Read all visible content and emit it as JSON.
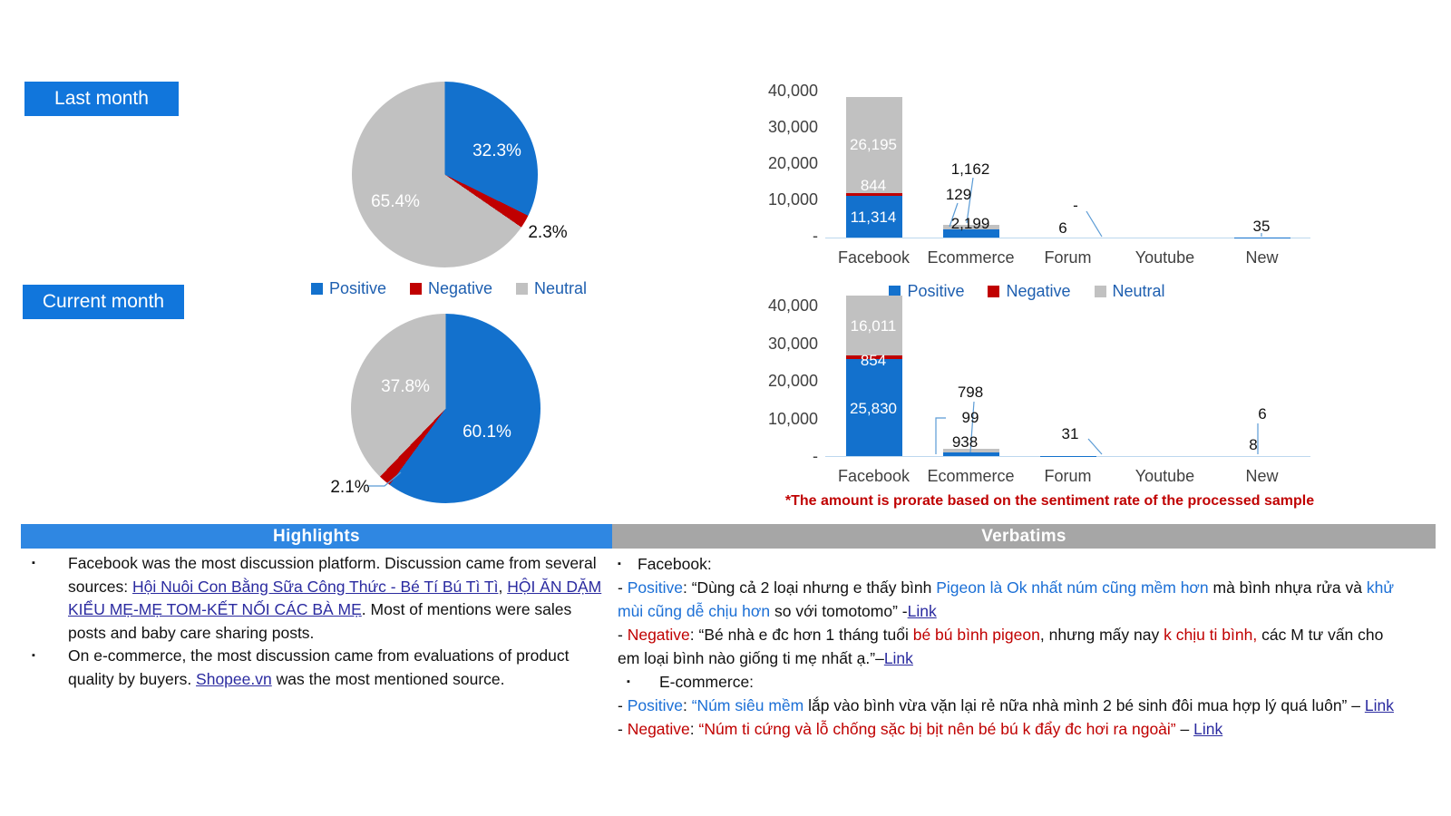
{
  "period_labels": {
    "last_month": "Last month",
    "current_month": "Current month"
  },
  "colors": {
    "positive_blue": "#1371CD",
    "negative_red": "#C00000",
    "neutral_gray": "#C1C1C1",
    "button_blue": "#1176DC",
    "highlights_header_blue": "#2F87E2",
    "verbatims_header_gray": "#A6A6A6",
    "legend_text_blue": "#1E5FB0",
    "inline_blue": "#1B6FD6",
    "link_navy": "#2B2BA0",
    "footnote_red": "#C00000",
    "axis_line_blue": "#BDD7EE",
    "leader_line_blue": "#5B9BD5"
  },
  "sentiment_legend": [
    {
      "label": "Positive",
      "color": "#1371CD"
    },
    {
      "label": "Negative",
      "color": "#C00000"
    },
    {
      "label": "Neutral",
      "color": "#C1C1C1"
    }
  ],
  "chart_data": [
    {
      "id": "pie-last-month",
      "type": "pie",
      "labels": [
        "Positive",
        "Negative",
        "Neutral"
      ],
      "values_pct": [
        32.3,
        2.3,
        65.4
      ],
      "display_labels": [
        "32.3%",
        "2.3%",
        "65.4%"
      ],
      "colors": [
        "#1371CD",
        "#C00000",
        "#C1C1C1"
      ],
      "legend_position": "bottom"
    },
    {
      "id": "pie-current-month",
      "type": "pie",
      "labels": [
        "Positive",
        "Negative",
        "Neutral"
      ],
      "values_pct": [
        60.1,
        2.1,
        37.8
      ],
      "display_labels": [
        "60.1%",
        "2.1%",
        "37.8%"
      ],
      "colors": [
        "#1371CD",
        "#C00000",
        "#C1C1C1"
      ],
      "legend_position": "top-right-of-slide"
    },
    {
      "id": "bar-last-month",
      "type": "bar",
      "stacked": true,
      "categories": [
        "Facebook",
        "Ecommerce",
        "Forum",
        "Youtube",
        "New"
      ],
      "series": [
        {
          "name": "Positive",
          "color": "#1371CD",
          "values": [
            11314,
            2199,
            6,
            0,
            35
          ]
        },
        {
          "name": "Negative",
          "color": "#C00000",
          "values": [
            844,
            129,
            0,
            0,
            0
          ]
        },
        {
          "name": "Neutral",
          "color": "#C1C1C1",
          "values": [
            26195,
            1162,
            0,
            0,
            0
          ]
        }
      ],
      "ylim": [
        0,
        40000
      ],
      "ytick_labels": [
        "40,000",
        "30,000",
        "20,000",
        "10,000",
        "-"
      ],
      "grid": false,
      "label_map": {
        "fb_neu": "26,195",
        "fb_neg": "844",
        "fb_pos": "11,314",
        "ec_neu": "1,162",
        "ec_neg": "129",
        "ec_pos": "2,199",
        "forum_pos": "6",
        "forum_dash": "-",
        "new_pos": "35"
      }
    },
    {
      "id": "bar-current-month",
      "type": "bar",
      "stacked": true,
      "categories": [
        "Facebook",
        "Ecommerce",
        "Forum",
        "Youtube",
        "New"
      ],
      "series": [
        {
          "name": "Positive",
          "color": "#1371CD",
          "values": [
            25830,
            938,
            31,
            0,
            8
          ]
        },
        {
          "name": "Negative",
          "color": "#C00000",
          "values": [
            854,
            99,
            0,
            0,
            0
          ]
        },
        {
          "name": "Neutral",
          "color": "#C1C1C1",
          "values": [
            16011,
            798,
            0,
            0,
            6
          ]
        }
      ],
      "ylim": [
        0,
        40000
      ],
      "ytick_labels": [
        "40,000",
        "30,000",
        "20,000",
        "10,000",
        "-"
      ],
      "grid": false,
      "label_map": {
        "fb_neu": "16,011",
        "fb_neg": "854",
        "fb_pos": "25,830",
        "ec_neu": "798",
        "ec_neg": "99",
        "ec_pos": "938",
        "forum": "31",
        "new_top": "6",
        "new_bottom": "8"
      }
    }
  ],
  "footnote": "*The amount is prorate based on the sentiment rate of the processed sample",
  "highlights": {
    "title": "Highlights",
    "bullets": [
      [
        {
          "t": "Facebook was the most discussion platform. Discussion came from several sources: "
        },
        {
          "t": "Hội Nuôi Con Bằng Sữa Công Thức - Bé Tí Bú Tì Tì",
          "s": "link"
        },
        {
          "t": ", "
        },
        {
          "t": "HỘI ĂN DẶM KIỂU MẸ-MẸ TOM-KẾT NỐI CÁC BÀ MẸ",
          "s": "link"
        },
        {
          "t": ". Most of mentions were sales posts and baby care sharing posts."
        }
      ],
      [
        {
          "t": "On e-commerce, the most discussion came from evaluations of product quality by buyers. "
        },
        {
          "t": "Shopee.vn",
          "s": "link"
        },
        {
          "t": " was the most mentioned source."
        }
      ]
    ]
  },
  "verbatims": {
    "title": "Verbatims",
    "items": [
      {
        "kind": "bullet",
        "segments": [
          {
            "t": "Facebook:"
          }
        ]
      },
      {
        "kind": "line",
        "segments": [
          {
            "t": "- "
          },
          {
            "t": "Positive",
            "s": "blue"
          },
          {
            "t": ": “Dùng cả 2 loại nhưng e thấy bình "
          },
          {
            "t": "Pigeon là Ok nhất núm cũng mềm hơn",
            "s": "blue"
          },
          {
            "t": " mà bình nhựa rửa và "
          },
          {
            "t": "khử mùi cũng dễ chịu hơn",
            "s": "blue"
          },
          {
            "t": " so với tomotomo” -"
          },
          {
            "t": "Link",
            "s": "link"
          }
        ]
      },
      {
        "kind": "line",
        "segments": [
          {
            "t": "- "
          },
          {
            "t": "Negative",
            "s": "red"
          },
          {
            "t": ": “Bé nhà e đc hơn 1 tháng tuổi "
          },
          {
            "t": "bé bú bình pigeon",
            "s": "red"
          },
          {
            "t": ", nhưng mấy nay "
          },
          {
            "t": "k chịu ti bình,",
            "s": "red"
          },
          {
            "t": " các M tư vấn cho em loại bình nào giống ti mẹ nhất ạ.”–"
          },
          {
            "t": "Link",
            "s": "link"
          }
        ]
      },
      {
        "kind": "bullet2",
        "segments": [
          {
            "t": "E-commerce:"
          }
        ]
      },
      {
        "kind": "line",
        "segments": [
          {
            "t": "- "
          },
          {
            "t": "Positive",
            "s": "blue"
          },
          {
            "t": ": "
          },
          {
            "t": "“Núm siêu mềm",
            "s": "blue"
          },
          {
            "t": " lắp vào bình vừa vặn lại rẻ nữa nhà mình 2 bé sinh đôi mua hợp lý quá luôn” – "
          },
          {
            "t": "Link",
            "s": "link"
          }
        ]
      },
      {
        "kind": "line",
        "segments": [
          {
            "t": "- "
          },
          {
            "t": "Negative",
            "s": "red"
          },
          {
            "t": ": "
          },
          {
            "t": "“Núm ti cứng và lỗ chống sặc bị bịt nên bé bú k đẩy đc hơi ra ngoài”",
            "s": "red"
          },
          {
            "t": " – "
          },
          {
            "t": "Link",
            "s": "link"
          }
        ]
      }
    ]
  }
}
